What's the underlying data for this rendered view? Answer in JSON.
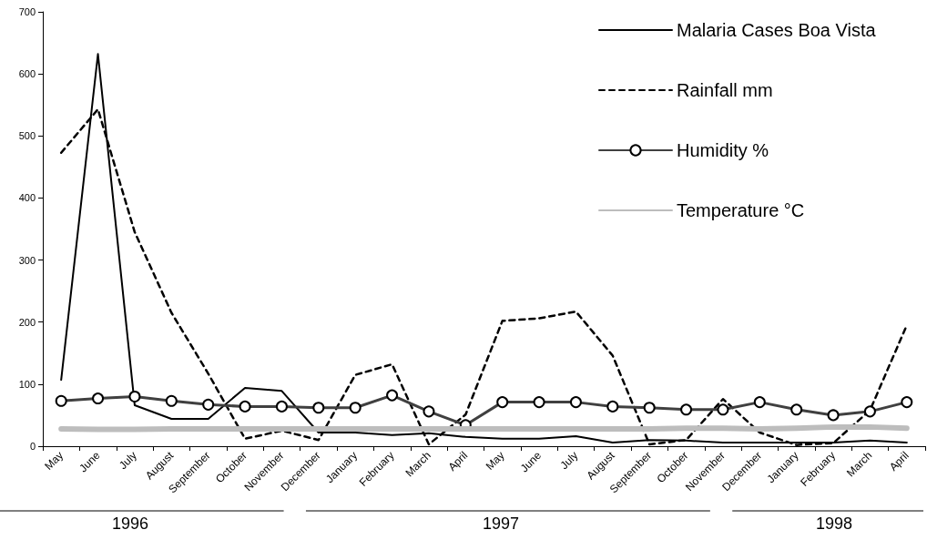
{
  "chart_data": {
    "type": "line",
    "categories": [
      "May",
      "June",
      "July",
      "August",
      "September",
      "October",
      "November",
      "December",
      "January",
      "February",
      "March",
      "April",
      "May",
      "June",
      "July",
      "August",
      "September",
      "October",
      "November",
      "December",
      "January",
      "February",
      "March",
      "April"
    ],
    "series": [
      {
        "name": "Malaria Cases Boa Vista",
        "color": "#000000",
        "line_style": "solid",
        "marker": "none",
        "values": [
          107,
          632,
          66,
          44,
          44,
          94,
          89,
          22,
          22,
          18,
          21,
          15,
          12,
          12,
          16,
          6,
          10,
          9,
          6,
          6,
          6,
          6,
          9,
          6
        ]
      },
      {
        "name": "Rainfall mm",
        "color": "#000000",
        "line_style": "dashed",
        "marker": "none",
        "values": [
          473,
          543,
          345,
          215,
          117,
          12,
          25,
          10,
          115,
          132,
          3,
          51,
          202,
          206,
          217,
          146,
          3,
          10,
          76,
          22,
          2,
          5,
          58,
          195
        ]
      },
      {
        "name": "Humidity %",
        "color": "#404040",
        "line_style": "solid",
        "marker": "circle",
        "values": [
          73,
          77,
          80,
          73,
          67,
          64,
          64,
          62,
          62,
          82,
          56,
          34,
          71,
          71,
          71,
          64,
          62,
          59,
          59,
          71,
          59,
          50,
          56,
          71
        ]
      },
      {
        "name": "Temperature °C",
        "color": "#bdbdbd",
        "line_style": "solid",
        "marker": "none",
        "values": [
          28,
          27,
          27,
          28,
          28,
          28,
          28,
          28,
          28,
          28,
          28,
          28,
          28,
          28,
          28,
          28,
          28,
          29,
          29,
          28,
          29,
          31,
          31,
          29
        ]
      }
    ],
    "ylim": [
      0,
      700
    ],
    "yticks": [
      0,
      100,
      200,
      300,
      400,
      500,
      600,
      700
    ],
    "grid": false,
    "legend": "top right",
    "annotations": [
      "1996",
      "1997",
      "1998"
    ]
  }
}
